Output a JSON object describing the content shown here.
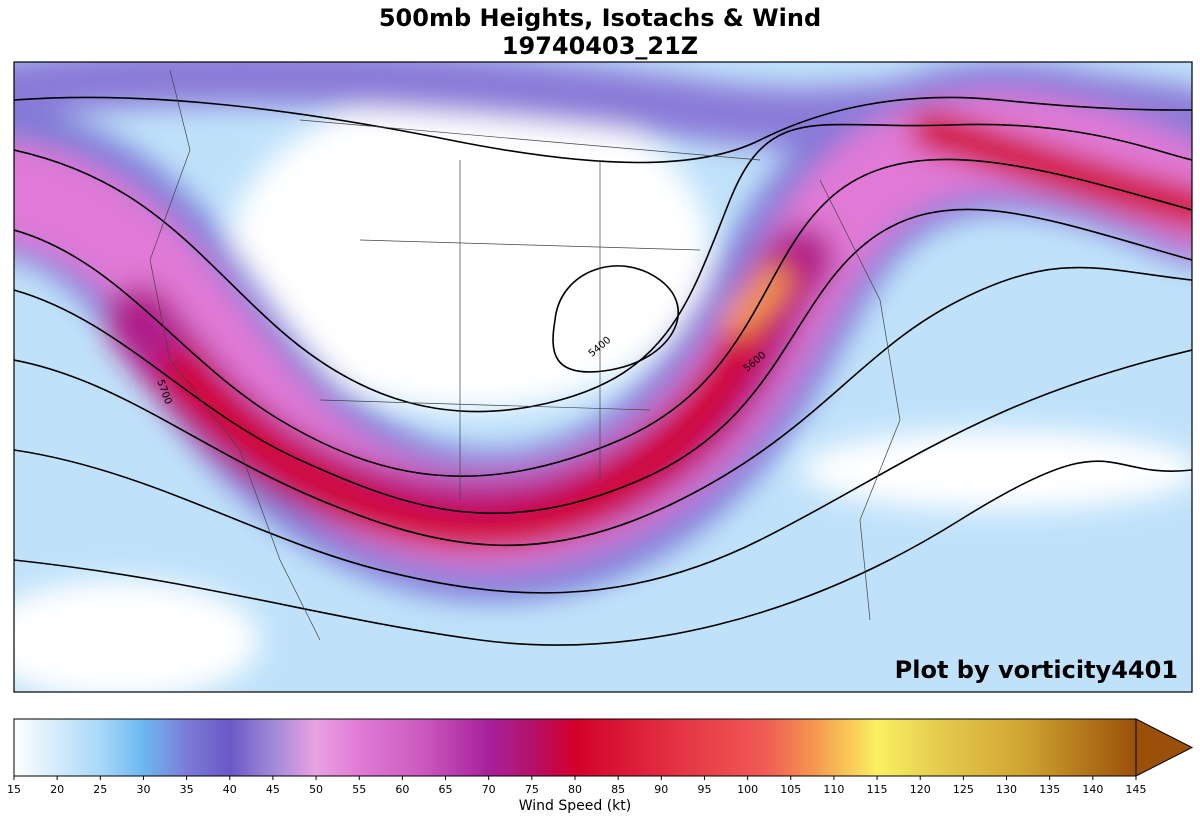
{
  "title": "500mb Heights, Isotachs & Wind",
  "subtitle": "19740403_21Z",
  "watermark": "Plot by vorticity4401",
  "contour_labels": [
    "5700",
    "5400",
    "5600"
  ],
  "colorbar": {
    "label": "Wind Speed (kt)",
    "lim": [
      15,
      145
    ],
    "ticks": [
      15,
      20,
      25,
      30,
      35,
      40,
      45,
      50,
      55,
      60,
      65,
      70,
      75,
      80,
      85,
      90,
      95,
      100,
      105,
      110,
      115,
      120,
      125,
      130,
      135,
      140,
      145
    ],
    "extend": "max",
    "stops": [
      {
        "value": 15,
        "color": "#ffffff"
      },
      {
        "value": 25,
        "color": "#a8d8f8"
      },
      {
        "value": 30,
        "color": "#6cb8f0"
      },
      {
        "value": 35,
        "color": "#7c7cd8"
      },
      {
        "value": 40,
        "color": "#6a58c8"
      },
      {
        "value": 45,
        "color": "#a08ad8"
      },
      {
        "value": 50,
        "color": "#eaa2e2"
      },
      {
        "value": 55,
        "color": "#e07ad6"
      },
      {
        "value": 62,
        "color": "#cc5cc0"
      },
      {
        "value": 70,
        "color": "#a8209c"
      },
      {
        "value": 75,
        "color": "#b4126a"
      },
      {
        "value": 80,
        "color": "#d2002a"
      },
      {
        "value": 92,
        "color": "#e43444"
      },
      {
        "value": 102,
        "color": "#f05a54"
      },
      {
        "value": 108,
        "color": "#f59a50"
      },
      {
        "value": 115,
        "color": "#faf062"
      },
      {
        "value": 122,
        "color": "#e6cc4e"
      },
      {
        "value": 132,
        "color": "#d0a432"
      },
      {
        "value": 145,
        "color": "#9a5008"
      }
    ]
  }
}
